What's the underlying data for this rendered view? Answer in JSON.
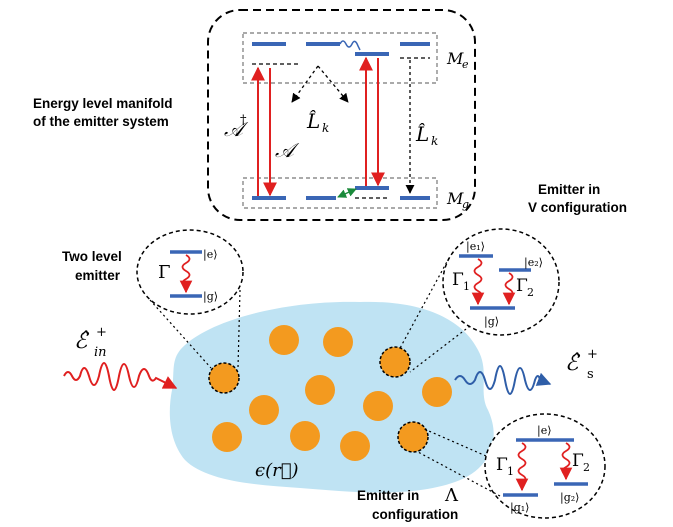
{
  "colors": {
    "medium": "#bfe3f3",
    "emitter": "#f39a1f",
    "level": "#3a66b5",
    "excitation": "#e02020",
    "coupling": "#1a8a3a",
    "scattered": "#2f5ea8"
  },
  "manifold": {
    "caption_line1": "Energy level manifold",
    "caption_line2": "of the emitter system",
    "raise_op": "𝒜",
    "raise_dagger": "†",
    "lower_op": "𝒜",
    "decay_op_a": "L̂",
    "decay_op_a_sub": "k",
    "decay_op_b": "L̂",
    "decay_op_b_sub": "k",
    "excited_label": "M",
    "excited_sub": "e",
    "ground_label": "M",
    "ground_sub": "g"
  },
  "two_level": {
    "title_line1": "Two level",
    "title_line2": "emitter",
    "rate": "Γ",
    "excited_ket": "|e⟩",
    "ground_ket": "|g⟩"
  },
  "v_config": {
    "title_line1": "Emitter in",
    "title_line2": "V configuration",
    "rate1": "Γ",
    "rate1_sub": "1",
    "rate2": "Γ",
    "rate2_sub": "2",
    "ket_e1": "|e₁⟩",
    "ket_e2": "|e₂⟩",
    "ket_g": "|g⟩"
  },
  "lambda_config": {
    "title_line1": "Emitter in",
    "title_line2": "configuration",
    "symbol": "Λ",
    "rate1": "Γ",
    "rate1_sub": "1",
    "rate2": "Γ",
    "rate2_sub": "2",
    "ket_e": "|e⟩",
    "ket_g1": "|g₁⟩",
    "ket_g2": "|g₂⟩"
  },
  "fields": {
    "incoming": "ℰ̂",
    "incoming_sup": "+",
    "incoming_sub": "in",
    "scattered": "ℰ̂",
    "scattered_sup": "+",
    "scattered_sub": "s",
    "permittivity": "ϵ(r⃗)"
  }
}
